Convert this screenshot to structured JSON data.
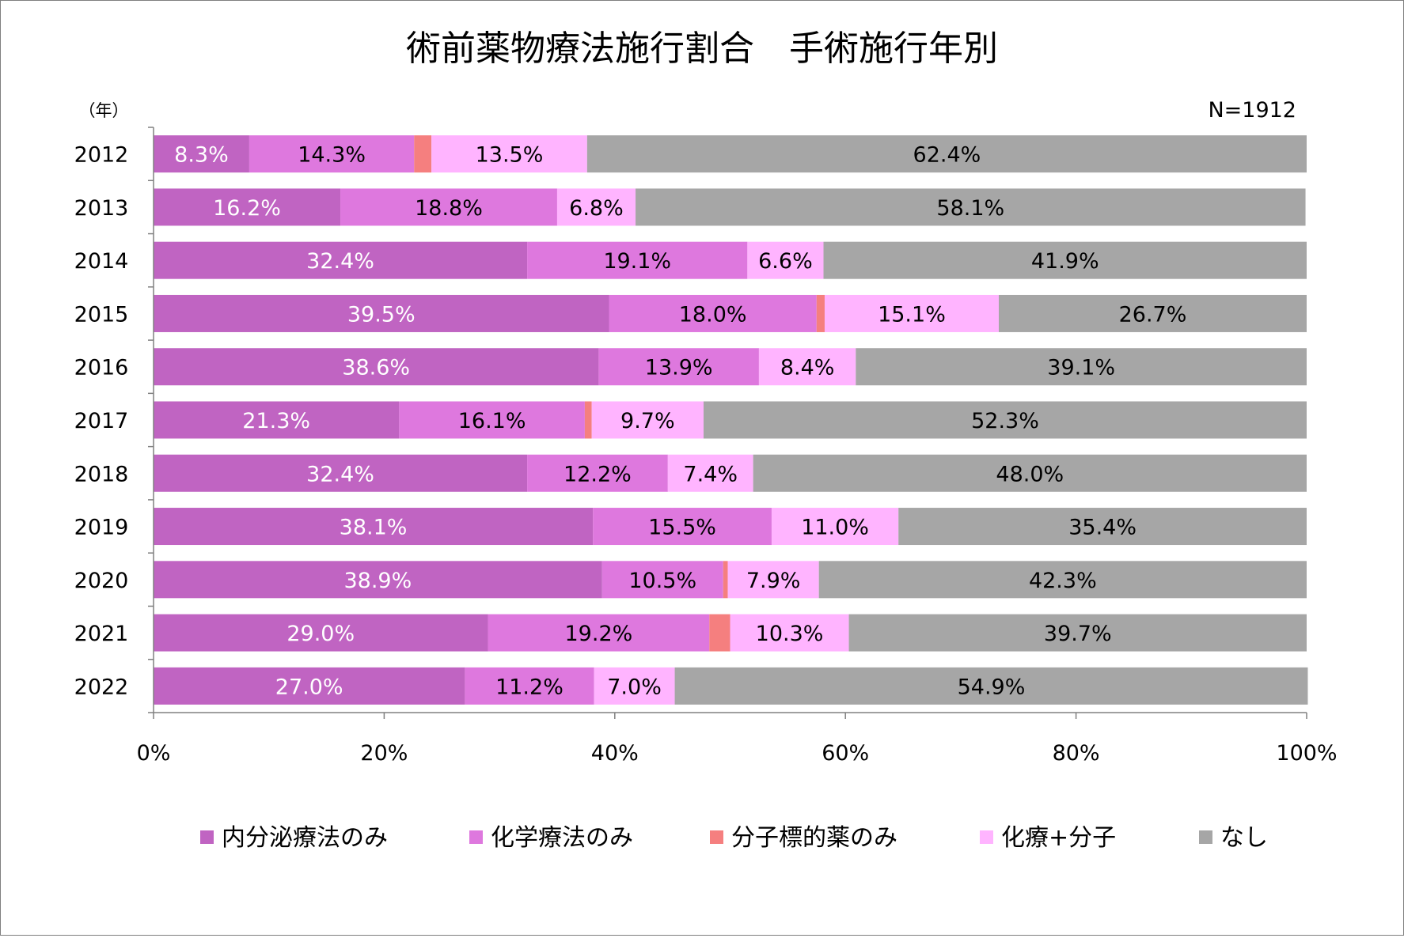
{
  "chart_data": {
    "type": "bar",
    "orientation": "horizontal",
    "stacked": true,
    "title": "術前薬物療法施行割合　手術施行年別",
    "y_unit_label": "（年）",
    "n_label": "N=1912",
    "categories": [
      "2012",
      "2013",
      "2014",
      "2015",
      "2016",
      "2017",
      "2018",
      "2019",
      "2020",
      "2021",
      "2022"
    ],
    "series": [
      {
        "name": "内分泌療法のみ",
        "color": "#c064c2",
        "label_color": "#ffffff",
        "values": [
          8.3,
          16.2,
          32.4,
          39.5,
          38.6,
          21.3,
          32.4,
          38.1,
          38.9,
          29.0,
          27.0
        ],
        "labels": [
          "8.3%",
          "16.2%",
          "32.4%",
          "39.5%",
          "38.6%",
          "21.3%",
          "32.4%",
          "38.1%",
          "38.9%",
          "29.0%",
          "27.0%"
        ]
      },
      {
        "name": "化学療法のみ",
        "color": "#de78de",
        "label_color": "#000000",
        "values": [
          14.3,
          18.8,
          19.1,
          18.0,
          13.9,
          16.1,
          12.2,
          15.5,
          10.5,
          19.2,
          11.2
        ],
        "labels": [
          "14.3%",
          "18.8%",
          "19.1%",
          "18.0%",
          "13.9%",
          "16.1%",
          "12.2%",
          "15.5%",
          "10.5%",
          "19.2%",
          "11.2%"
        ]
      },
      {
        "name": "分子標的薬のみ",
        "color": "#f57f7f",
        "label_color": "#000000",
        "values": [
          1.5,
          0,
          0,
          0.7,
          0,
          0.6,
          0,
          0,
          0.4,
          1.8,
          0
        ],
        "labels": [
          "",
          "",
          "",
          "",
          "",
          "",
          "",
          "",
          "",
          "",
          ""
        ]
      },
      {
        "name": "化療+分子",
        "color": "#ffb4ff",
        "label_color": "#000000",
        "values": [
          13.5,
          6.8,
          6.6,
          15.1,
          8.4,
          9.7,
          7.4,
          11.0,
          7.9,
          10.3,
          7.0
        ],
        "labels": [
          "13.5%",
          "6.8%",
          "6.6%",
          "15.1%",
          "8.4%",
          "9.7%",
          "7.4%",
          "11.0%",
          "7.9%",
          "10.3%",
          "7.0%"
        ]
      },
      {
        "name": "なし",
        "color": "#a6a6a6",
        "label_color": "#000000",
        "values": [
          62.4,
          58.1,
          41.9,
          26.7,
          39.1,
          52.3,
          48.0,
          35.4,
          42.3,
          39.7,
          54.9
        ],
        "labels": [
          "62.4%",
          "58.1%",
          "41.9%",
          "26.7%",
          "39.1%",
          "52.3%",
          "48.0%",
          "35.4%",
          "42.3%",
          "39.7%",
          "54.9%"
        ]
      }
    ],
    "x_ticks": [
      "0%",
      "20%",
      "40%",
      "60%",
      "80%",
      "100%"
    ],
    "xlim": [
      0,
      100
    ],
    "grid": false,
    "legend_position": "bottom"
  }
}
